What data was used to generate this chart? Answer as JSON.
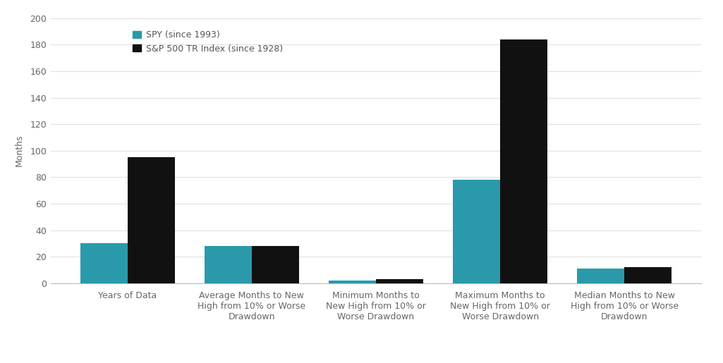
{
  "categories": [
    "Years of Data",
    "Average Months to New\nHigh from 10% or Worse\nDrawdown",
    "Minimum Months to\nNew High from 10% or\nWorse Drawdown",
    "Maximum Months to\nNew High from 10% or\nWorse Drawdown",
    "Median Months to New\nHigh from 10% or Worse\nDrawdown"
  ],
  "spy_values": [
    30,
    28,
    2,
    78,
    11
  ],
  "sp500_values": [
    95,
    28,
    3,
    184,
    12
  ],
  "spy_color": "#2a9aaa",
  "sp500_color": "#111111",
  "ylabel": "Months",
  "ylim": [
    0,
    200
  ],
  "yticks": [
    0,
    20,
    40,
    60,
    80,
    100,
    120,
    140,
    160,
    180,
    200
  ],
  "legend_spy": "SPY (since 1993)",
  "legend_sp500": "S&P 500 TR Index (since 1928)",
  "background_color": "#ffffff",
  "grid_color": "#e0e0e0",
  "bar_width": 0.38,
  "label_fontsize": 9,
  "tick_fontsize": 9,
  "legend_fontsize": 9
}
